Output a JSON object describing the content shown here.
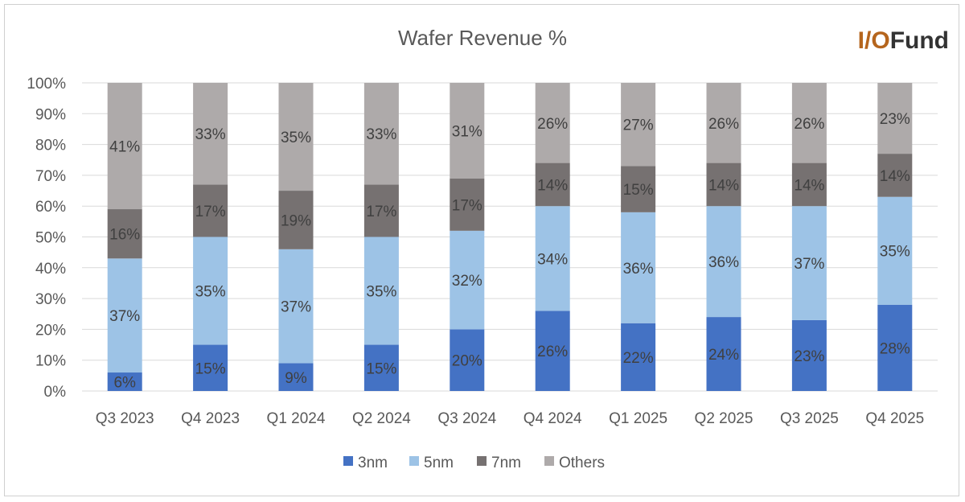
{
  "logo": {
    "part1": "I/O",
    "part2": "Fund"
  },
  "chart_data": {
    "type": "bar",
    "stacked": true,
    "title": "Wafer Revenue %",
    "xlabel": "",
    "ylabel": "",
    "ylim": [
      0,
      100
    ],
    "y_ticks": [
      "0%",
      "10%",
      "20%",
      "30%",
      "40%",
      "50%",
      "60%",
      "70%",
      "80%",
      "90%",
      "100%"
    ],
    "grid": true,
    "legend_position": "bottom",
    "categories": [
      "Q3 2023",
      "Q4 2023",
      "Q1 2024",
      "Q2 2024",
      "Q3 2024",
      "Q4 2024",
      "Q1 2025",
      "Q2 2025",
      "Q3 2025",
      "Q4 2025"
    ],
    "series": [
      {
        "name": "3nm",
        "color": "#4472c4",
        "values": [
          6,
          15,
          9,
          15,
          20,
          26,
          22,
          24,
          23,
          28
        ]
      },
      {
        "name": "5nm",
        "color": "#9dc3e6",
        "values": [
          37,
          35,
          37,
          35,
          32,
          34,
          36,
          36,
          37,
          35
        ]
      },
      {
        "name": "7nm",
        "color": "#767171",
        "values": [
          16,
          17,
          19,
          17,
          17,
          14,
          15,
          14,
          14,
          14
        ]
      },
      {
        "name": "Others",
        "color": "#aeaaaa",
        "values": [
          41,
          33,
          35,
          33,
          31,
          26,
          27,
          26,
          26,
          23
        ]
      }
    ],
    "data_label_suffix": "%"
  }
}
